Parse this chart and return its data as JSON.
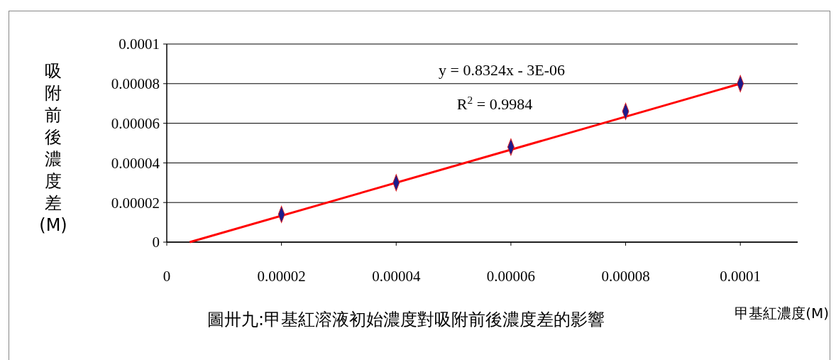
{
  "chart_data": {
    "type": "scatter",
    "xlabel": "甲基紅濃度(M)",
    "ylabel": "吸附前後濃度差(M)",
    "annotations": [
      "y = 0.8324x - 3E-06",
      "R$^{2}$ = 0.9984",
      "圖卅九:甲基紅溶液初始濃度對吸附前後濃度差的影響"
    ],
    "xlim": [
      0,
      0.00011
    ],
    "xticks": [
      0,
      {
        "value": 2e-05,
        "label": "0.00002"
      },
      {
        "value": 4e-05,
        "label": "0.00004"
      },
      {
        "value": 6e-05,
        "label": "0.00006"
      },
      {
        "value": 8e-05,
        "label": "0.00008"
      },
      0.0001
    ],
    "ylim": [
      0,
      0.0001
    ],
    "yticks": [
      0,
      {
        "value": 2e-05,
        "label": "0.00002"
      },
      {
        "value": 4e-05,
        "label": "0.00004"
      },
      {
        "value": 6e-05,
        "label": "0.00006"
      },
      {
        "value": 8e-05,
        "label": "0.00008"
      },
      0.0001
    ],
    "grid": "y",
    "marker": "diamond",
    "series": [
      {
        "color": "#1c1c8c",
        "x": [
          2e-05,
          4e-05,
          6e-05,
          8e-05,
          0.0001
        ],
        "values": [
          1.4e-05,
          3e-05,
          4.8e-05,
          6.6e-05,
          8e-05
        ]
      },
      {
        "type": "line",
        "marker": "none",
        "color": "#ff0000",
        "x": [
          4e-06,
          0.0001
        ],
        "values": [
          0,
          8e-05
        ]
      }
    ]
  }
}
